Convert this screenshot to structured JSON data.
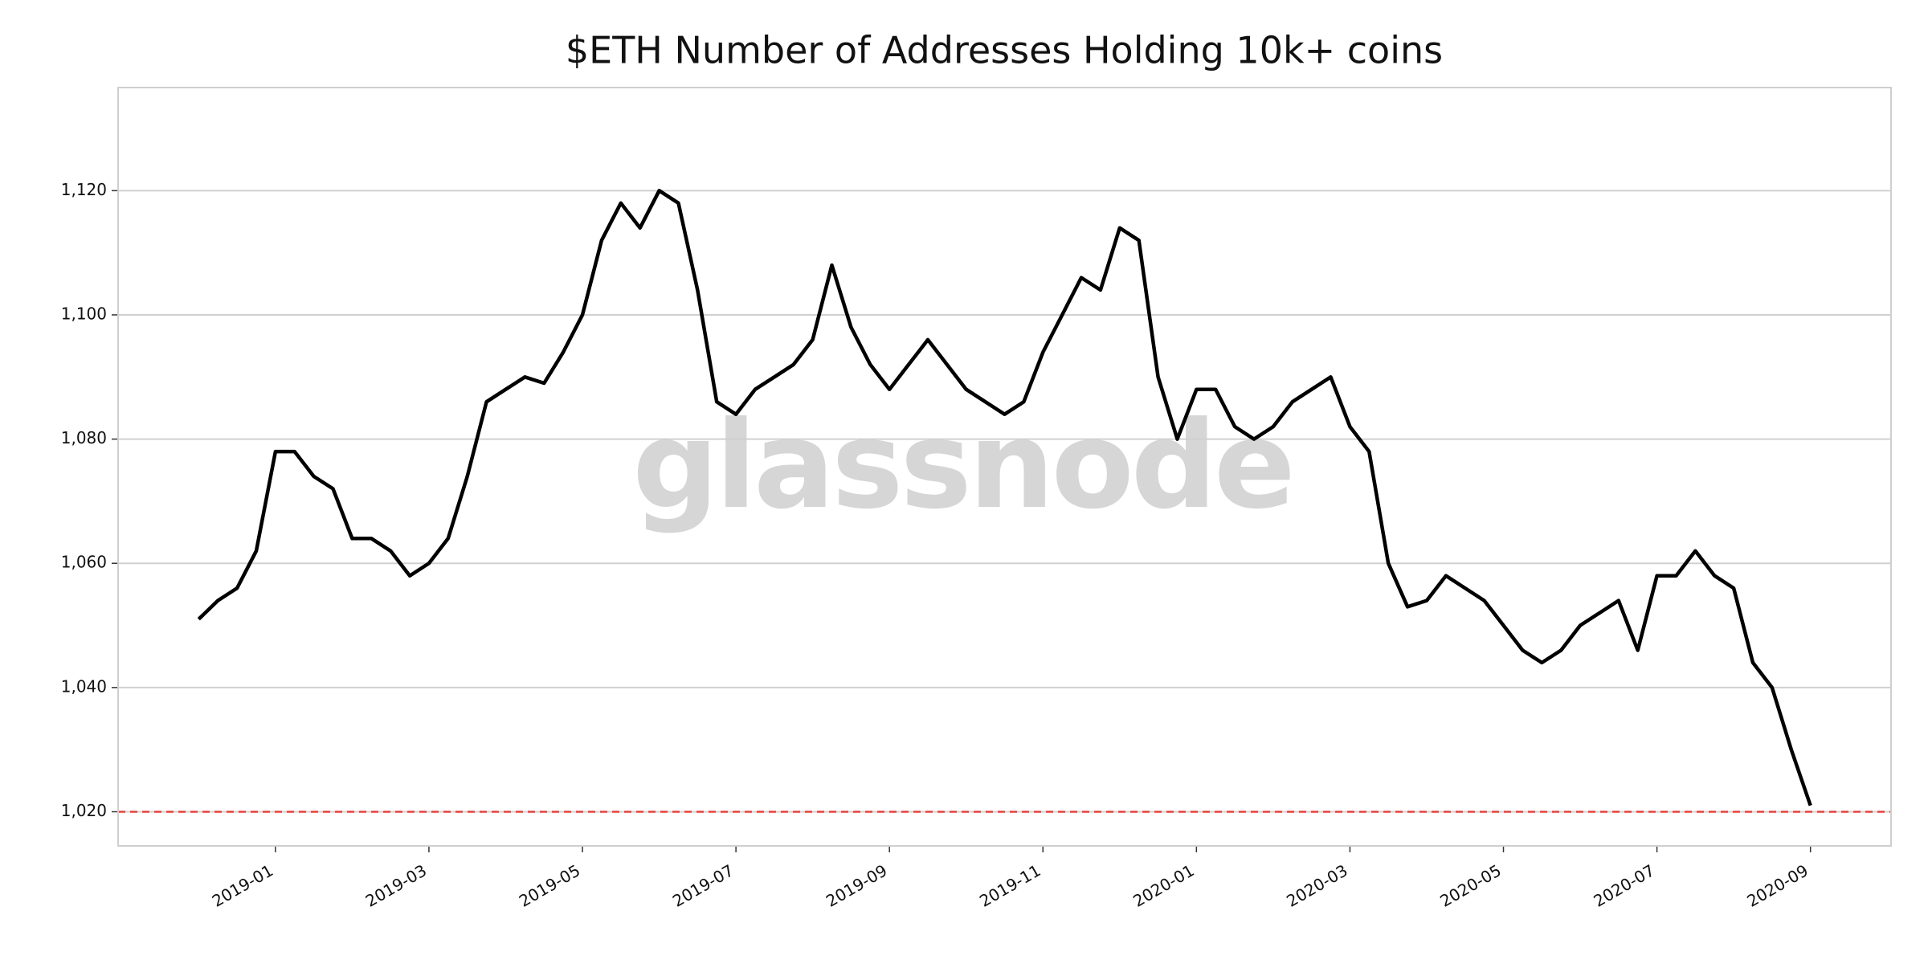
{
  "chart_data": {
    "type": "line",
    "title": "$ETH Number of Addresses Holding 10k+ coins",
    "watermark": "glassnode",
    "xlim": [
      "2018-12",
      "2020-09"
    ],
    "xticks": [
      "2019-01",
      "2019-03",
      "2019-05",
      "2019-07",
      "2019-09",
      "2019-11",
      "2020-01",
      "2020-03",
      "2020-05",
      "2020-07",
      "2020-09"
    ],
    "ylim": [
      1014.5,
      1136.6
    ],
    "yticks": [
      {
        "value": 1020,
        "label": "1,020"
      },
      {
        "value": 1040,
        "label": "1,040"
      },
      {
        "value": 1060,
        "label": "1,060"
      },
      {
        "value": 1080,
        "label": "1,080"
      },
      {
        "value": 1100,
        "label": "1,100"
      },
      {
        "value": 1120,
        "label": "1,120"
      }
    ],
    "grid": true,
    "reference_line": {
      "value": 1020,
      "color": "#e8413c"
    },
    "series": [
      {
        "color": "#000000",
        "values": [
          1051,
          1054,
          1056,
          1062,
          1078,
          1078,
          1074,
          1072,
          1064,
          1064,
          1062,
          1058,
          1060,
          1064,
          1074,
          1086,
          1088,
          1090,
          1089,
          1094,
          1100,
          1112,
          1118,
          1114,
          1120,
          1118,
          1104,
          1086,
          1084,
          1088,
          1090,
          1092,
          1096,
          1108,
          1098,
          1092,
          1088,
          1092,
          1096,
          1092,
          1088,
          1086,
          1084,
          1086,
          1094,
          1100,
          1106,
          1104,
          1114,
          1112,
          1090,
          1080,
          1088,
          1088,
          1082,
          1080,
          1082,
          1086,
          1088,
          1090,
          1082,
          1078,
          1060,
          1053,
          1054,
          1058,
          1056,
          1054,
          1050,
          1046,
          1044,
          1046,
          1050,
          1052,
          1054,
          1046,
          1058,
          1058,
          1062,
          1058,
          1056,
          1044,
          1040,
          1030,
          1021
        ]
      }
    ]
  }
}
